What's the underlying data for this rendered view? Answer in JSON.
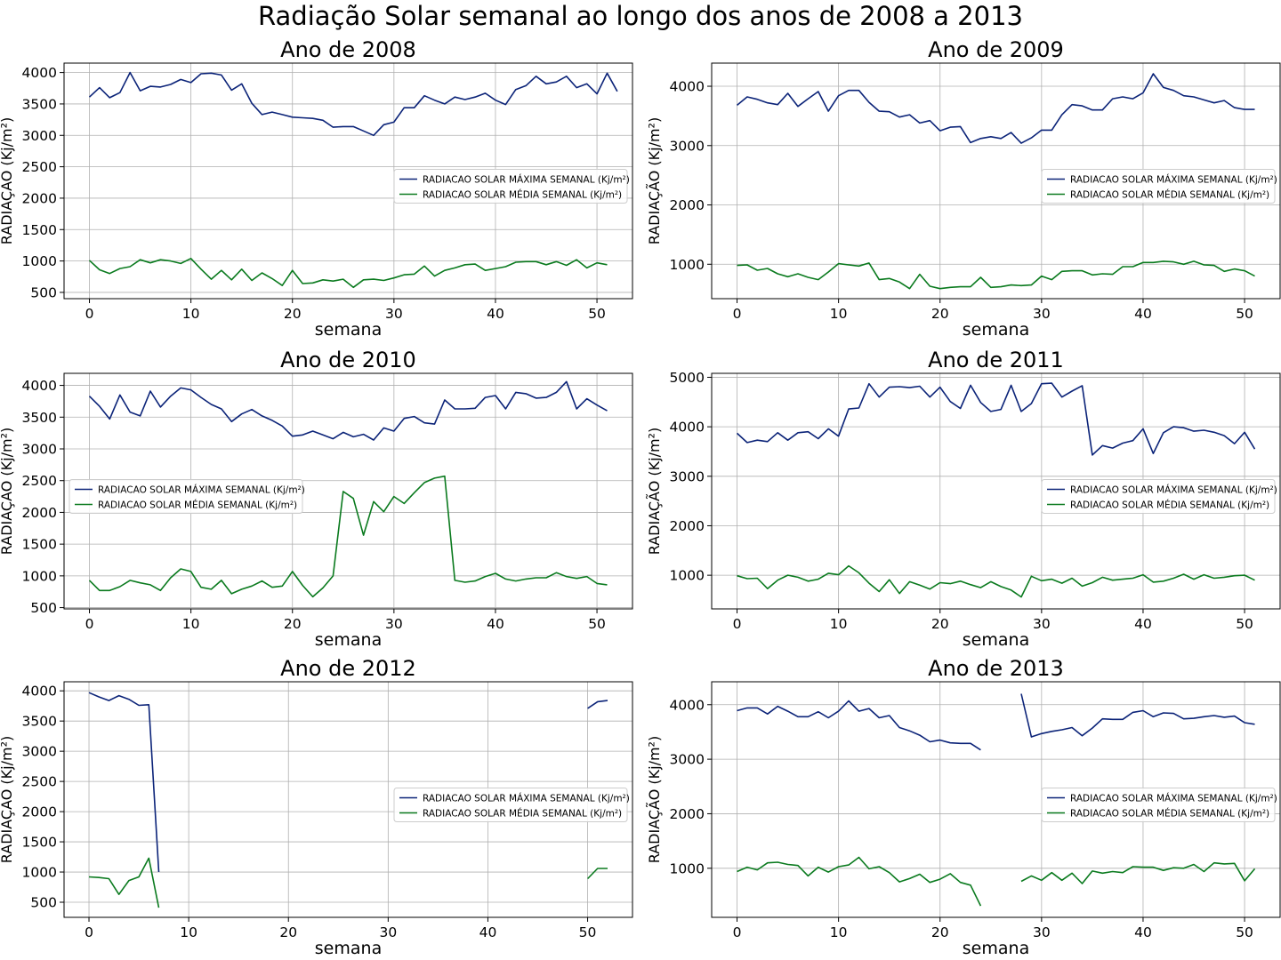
{
  "figure": {
    "suptitle": "Radiação Solar semanal ao longo dos anos de 2008 a 2013"
  },
  "colors": {
    "max_series": "#0b2378",
    "mean_series": "#0a7a1e",
    "grid": "#b0b0b0"
  },
  "chart_data": [
    {
      "type": "line",
      "title": "Ano de 2008",
      "xlabel": "semana",
      "ylabel": "RADIAÇÃO (Kj/m²)",
      "xlim": [
        -2.5,
        53.5
      ],
      "ylim": [
        400,
        4150
      ],
      "xticks": [
        0,
        10,
        20,
        30,
        40,
        50
      ],
      "yticks": [
        500,
        1000,
        1500,
        2000,
        2500,
        3000,
        3500,
        4000
      ],
      "grid": true,
      "legend_position": "center-right",
      "series": [
        {
          "name": "RADIACAO SOLAR MÁXIMA SEMANAL (Kj/m²)",
          "x_start": 0,
          "values": [
            3610,
            3760,
            3600,
            3680,
            4000,
            3710,
            3780,
            3770,
            3810,
            3890,
            3840,
            3980,
            3990,
            3960,
            3720,
            3820,
            3510,
            3330,
            3370,
            3330,
            3290,
            3280,
            3270,
            3240,
            3130,
            3140,
            3140,
            3070,
            3000,
            3170,
            3210,
            3440,
            3440,
            3630,
            3560,
            3500,
            3610,
            3570,
            3610,
            3670,
            3560,
            3490,
            3730,
            3790,
            3940,
            3820,
            3850,
            3940,
            3760,
            3820,
            3660,
            3990,
            3700
          ]
        },
        {
          "name": "RADIACAO SOLAR MÉDIA SEMANAL (Kj/m²)",
          "x_start": 0,
          "values": [
            1010,
            860,
            800,
            880,
            910,
            1020,
            970,
            1020,
            1000,
            960,
            1040,
            870,
            710,
            850,
            700,
            870,
            690,
            810,
            720,
            610,
            850,
            640,
            650,
            700,
            680,
            710,
            580,
            700,
            710,
            690,
            730,
            780,
            790,
            920,
            760,
            850,
            890,
            940,
            950,
            850,
            880,
            910,
            980,
            990,
            990,
            940,
            990,
            930,
            1020,
            890,
            970,
            940
          ]
        }
      ]
    },
    {
      "type": "line",
      "title": "Ano de 2009",
      "xlabel": "semana",
      "ylabel": "RADIAÇÃO (Kj/m²)",
      "xlim": [
        -2.5,
        53.5
      ],
      "ylim": [
        420,
        4390
      ],
      "xticks": [
        0,
        10,
        20,
        30,
        40,
        50
      ],
      "yticks": [
        1000,
        2000,
        3000,
        4000
      ],
      "grid": true,
      "legend_position": "center-right",
      "series": [
        {
          "name": "RADIACAO SOLAR MÁXIMA SEMANAL (Kj/m²)",
          "x_start": 0,
          "values": [
            3680,
            3820,
            3780,
            3720,
            3690,
            3880,
            3660,
            3790,
            3910,
            3580,
            3840,
            3930,
            3930,
            3730,
            3580,
            3570,
            3480,
            3520,
            3380,
            3420,
            3250,
            3310,
            3320,
            3050,
            3120,
            3150,
            3120,
            3220,
            3040,
            3130,
            3260,
            3260,
            3520,
            3690,
            3670,
            3600,
            3600,
            3790,
            3820,
            3790,
            3890,
            4210,
            3980,
            3930,
            3840,
            3820,
            3770,
            3720,
            3760,
            3640,
            3610,
            3610
          ]
        },
        {
          "name": "RADIACAO SOLAR MÉDIA SEMANAL (Kj/m²)",
          "x_start": 0,
          "values": [
            980,
            990,
            900,
            930,
            840,
            790,
            840,
            780,
            740,
            870,
            1010,
            990,
            970,
            1020,
            740,
            760,
            700,
            590,
            830,
            630,
            590,
            610,
            620,
            620,
            780,
            610,
            620,
            650,
            640,
            650,
            800,
            740,
            880,
            890,
            890,
            820,
            840,
            830,
            960,
            960,
            1030,
            1030,
            1050,
            1040,
            1000,
            1050,
            990,
            980,
            880,
            920,
            890,
            800
          ]
        }
      ]
    },
    {
      "type": "line",
      "title": "Ano de 2010",
      "xlabel": "semana",
      "ylabel": "RADIAÇÃO (Kj/m²)",
      "xlim": [
        -2.5,
        53.5
      ],
      "ylim": [
        480,
        4190
      ],
      "xticks": [
        0,
        10,
        20,
        30,
        40,
        50
      ],
      "yticks": [
        500,
        1000,
        1500,
        2000,
        2500,
        3000,
        3500,
        4000
      ],
      "grid": true,
      "legend_position": "center-left",
      "series": [
        {
          "name": "RADIACAO SOLAR MÁXIMA SEMANAL (Kj/m²)",
          "x_start": 0,
          "values": [
            3830,
            3670,
            3470,
            3850,
            3580,
            3520,
            3910,
            3660,
            3830,
            3960,
            3930,
            3810,
            3700,
            3630,
            3430,
            3550,
            3620,
            3520,
            3450,
            3360,
            3200,
            3220,
            3280,
            3220,
            3160,
            3260,
            3190,
            3230,
            3140,
            3330,
            3280,
            3480,
            3510,
            3410,
            3390,
            3770,
            3630,
            3630,
            3640,
            3810,
            3840,
            3630,
            3890,
            3870,
            3800,
            3810,
            3890,
            4060,
            3630,
            3790,
            3690,
            3600
          ]
        },
        {
          "name": "RADIACAO SOLAR MÉDIA SEMANAL (Kj/m²)",
          "x_start": 0,
          "values": [
            930,
            770,
            770,
            830,
            930,
            890,
            860,
            770,
            970,
            1110,
            1070,
            820,
            790,
            930,
            720,
            790,
            840,
            920,
            820,
            840,
            1070,
            850,
            670,
            810,
            1000,
            2330,
            2220,
            1640,
            2170,
            2010,
            2250,
            2140,
            2310,
            2470,
            2540,
            2570,
            930,
            900,
            920,
            990,
            1040,
            950,
            920,
            950,
            970,
            970,
            1050,
            990,
            960,
            990,
            880,
            860
          ]
        }
      ]
    },
    {
      "type": "line",
      "title": "Ano de 2011",
      "xlabel": "semana",
      "ylabel": "RADIAÇÃO (Kj/m²)",
      "xlim": [
        -2.5,
        53.5
      ],
      "ylim": [
        320,
        5080
      ],
      "xticks": [
        0,
        10,
        20,
        30,
        40,
        50
      ],
      "yticks": [
        1000,
        2000,
        3000,
        4000,
        5000
      ],
      "grid": true,
      "legend_position": "center-right",
      "series": [
        {
          "name": "RADIACAO SOLAR MÁXIMA SEMANAL (Kj/m²)",
          "x_start": 0,
          "values": [
            3870,
            3680,
            3730,
            3700,
            3880,
            3730,
            3880,
            3900,
            3760,
            3960,
            3810,
            4360,
            4380,
            4870,
            4600,
            4800,
            4810,
            4790,
            4820,
            4600,
            4800,
            4510,
            4370,
            4840,
            4490,
            4310,
            4350,
            4840,
            4310,
            4470,
            4870,
            4880,
            4600,
            4720,
            4830,
            3430,
            3620,
            3570,
            3670,
            3720,
            3960,
            3460,
            3880,
            4000,
            3980,
            3910,
            3930,
            3890,
            3820,
            3660,
            3890,
            3550
          ]
        },
        {
          "name": "RADIACAO SOLAR MÉDIA SEMANAL (Kj/m²)",
          "x_start": 0,
          "values": [
            990,
            930,
            940,
            730,
            900,
            1000,
            960,
            880,
            920,
            1040,
            1010,
            1190,
            1050,
            840,
            670,
            910,
            630,
            870,
            800,
            720,
            850,
            830,
            880,
            810,
            750,
            870,
            770,
            700,
            560,
            980,
            890,
            920,
            840,
            940,
            780,
            850,
            960,
            900,
            920,
            940,
            1010,
            860,
            880,
            940,
            1020,
            920,
            1010,
            940,
            960,
            990,
            1000,
            900
          ]
        }
      ]
    },
    {
      "type": "line",
      "title": "Ano de 2012",
      "xlabel": "semana",
      "ylabel": "RADIAÇÃO (Kj/m²)",
      "xlim": [
        -2.5,
        54.5
      ],
      "ylim": [
        250,
        4150
      ],
      "xticks": [
        0,
        10,
        20,
        30,
        40,
        50
      ],
      "yticks": [
        500,
        1000,
        1500,
        2000,
        2500,
        3000,
        3500,
        4000
      ],
      "grid": true,
      "legend_position": "center-right",
      "series": [
        {
          "name": "RADIACAO SOLAR MÁXIMA SEMANAL (Kj/m²)",
          "x_start": 0,
          "values": [
            3970,
            3900,
            3840,
            3920,
            3860,
            3760,
            3770,
            1000,
            null,
            null,
            null,
            null,
            null,
            null,
            null,
            null,
            null,
            null,
            null,
            null,
            null,
            null,
            null,
            null,
            null,
            null,
            null,
            null,
            null,
            null,
            null,
            null,
            null,
            null,
            null,
            null,
            null,
            null,
            null,
            null,
            null,
            null,
            null,
            null,
            null,
            null,
            null,
            null,
            null,
            null,
            3710,
            3820,
            3840
          ]
        },
        {
          "name": "RADIACAO SOLAR MÉDIA SEMANAL (Kj/m²)",
          "x_start": 0,
          "values": [
            920,
            910,
            890,
            630,
            860,
            920,
            1230,
            410,
            null,
            null,
            null,
            null,
            null,
            null,
            null,
            null,
            null,
            null,
            null,
            null,
            null,
            null,
            null,
            null,
            null,
            null,
            null,
            null,
            null,
            null,
            null,
            null,
            null,
            null,
            null,
            null,
            null,
            null,
            null,
            null,
            null,
            null,
            null,
            null,
            null,
            null,
            null,
            null,
            null,
            null,
            890,
            1060,
            1060
          ]
        }
      ]
    },
    {
      "type": "line",
      "title": "Ano de 2013",
      "xlabel": "semana",
      "ylabel": "RADIAÇÃO (Kj/m²)",
      "xlim": [
        -2.5,
        53.5
      ],
      "ylim": [
        100,
        4420
      ],
      "xticks": [
        0,
        10,
        20,
        30,
        40,
        50
      ],
      "yticks": [
        1000,
        2000,
        3000,
        4000
      ],
      "grid": true,
      "legend_position": "center-right",
      "series": [
        {
          "name": "RADIACAO SOLAR MÁXIMA SEMANAL (Kj/m²)",
          "x_start": 0,
          "values": [
            3890,
            3940,
            3940,
            3830,
            3970,
            3880,
            3780,
            3780,
            3870,
            3760,
            3880,
            4070,
            3880,
            3930,
            3760,
            3800,
            3580,
            3520,
            3440,
            3320,
            3350,
            3300,
            3290,
            3290,
            3170,
            null,
            null,
            null,
            4200,
            3410,
            3470,
            3510,
            3540,
            3580,
            3430,
            3570,
            3740,
            3730,
            3730,
            3860,
            3890,
            3780,
            3850,
            3840,
            3740,
            3750,
            3780,
            3800,
            3770,
            3790,
            3670,
            3640
          ]
        },
        {
          "name": "RADIACAO SOLAR MÉDIA SEMANAL (Kj/m²)",
          "x_start": 0,
          "values": [
            940,
            1020,
            970,
            1100,
            1110,
            1070,
            1050,
            860,
            1020,
            930,
            1030,
            1060,
            1200,
            990,
            1030,
            920,
            750,
            810,
            890,
            740,
            800,
            900,
            740,
            690,
            310,
            null,
            null,
            null,
            760,
            860,
            780,
            920,
            780,
            910,
            720,
            950,
            910,
            940,
            920,
            1030,
            1020,
            1020,
            960,
            1010,
            1000,
            1070,
            940,
            1100,
            1080,
            1090,
            770,
            990
          ]
        }
      ]
    }
  ]
}
